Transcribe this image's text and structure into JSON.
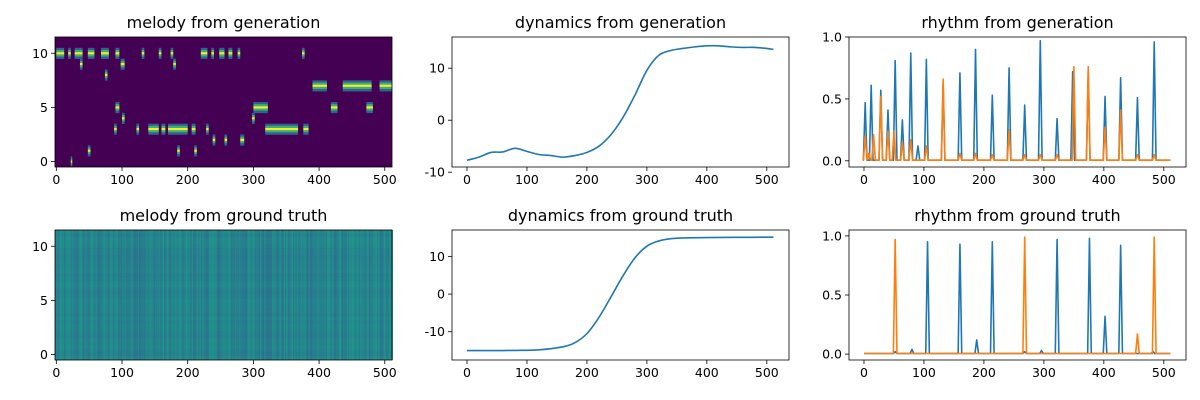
{
  "chart_data": [
    {
      "type": "heatmap",
      "title": "melody from generation",
      "colormap": "viridis",
      "xlim": [
        -2,
        511
      ],
      "ylim": [
        -0.5,
        11.5
      ],
      "xticks": [
        0,
        100,
        200,
        300,
        400,
        500
      ],
      "yticks": [
        0,
        5,
        10
      ],
      "rows": 12,
      "cols": 512,
      "active_segments": [
        {
          "row": 10,
          "start": 0,
          "end": 12
        },
        {
          "row": 10,
          "start": 18,
          "end": 22
        },
        {
          "row": 10,
          "start": 28,
          "end": 40
        },
        {
          "row": 10,
          "start": 48,
          "end": 58
        },
        {
          "row": 10,
          "start": 68,
          "end": 80
        },
        {
          "row": 10,
          "start": 90,
          "end": 96
        },
        {
          "row": 10,
          "start": 130,
          "end": 134
        },
        {
          "row": 10,
          "start": 156,
          "end": 160
        },
        {
          "row": 10,
          "start": 174,
          "end": 178
        },
        {
          "row": 10,
          "start": 220,
          "end": 230
        },
        {
          "row": 10,
          "start": 236,
          "end": 240
        },
        {
          "row": 10,
          "start": 248,
          "end": 256
        },
        {
          "row": 10,
          "start": 262,
          "end": 268
        },
        {
          "row": 10,
          "start": 276,
          "end": 280
        },
        {
          "row": 10,
          "start": 374,
          "end": 378
        },
        {
          "row": 9,
          "start": 36,
          "end": 40
        },
        {
          "row": 9,
          "start": 98,
          "end": 104
        },
        {
          "row": 9,
          "start": 178,
          "end": 182
        },
        {
          "row": 8,
          "start": 74,
          "end": 78
        },
        {
          "row": 7,
          "start": 390,
          "end": 412
        },
        {
          "row": 7,
          "start": 436,
          "end": 480
        },
        {
          "row": 7,
          "start": 492,
          "end": 511
        },
        {
          "row": 5,
          "start": 90,
          "end": 96
        },
        {
          "row": 5,
          "start": 300,
          "end": 322
        },
        {
          "row": 5,
          "start": 418,
          "end": 428
        },
        {
          "row": 5,
          "start": 472,
          "end": 482
        },
        {
          "row": 4,
          "start": 100,
          "end": 104
        },
        {
          "row": 4,
          "start": 298,
          "end": 302
        },
        {
          "row": 3,
          "start": 88,
          "end": 92
        },
        {
          "row": 3,
          "start": 122,
          "end": 126
        },
        {
          "row": 3,
          "start": 140,
          "end": 156
        },
        {
          "row": 3,
          "start": 160,
          "end": 166
        },
        {
          "row": 3,
          "start": 170,
          "end": 200
        },
        {
          "row": 3,
          "start": 206,
          "end": 212
        },
        {
          "row": 3,
          "start": 228,
          "end": 232
        },
        {
          "row": 3,
          "start": 318,
          "end": 368
        },
        {
          "row": 3,
          "start": 376,
          "end": 384
        },
        {
          "row": 2,
          "start": 238,
          "end": 242
        },
        {
          "row": 2,
          "start": 256,
          "end": 260
        },
        {
          "row": 2,
          "start": 280,
          "end": 286
        },
        {
          "row": 1,
          "start": 48,
          "end": 52
        },
        {
          "row": 1,
          "start": 184,
          "end": 188
        },
        {
          "row": 1,
          "start": 210,
          "end": 214
        },
        {
          "row": 0,
          "start": 22,
          "end": 24
        }
      ]
    },
    {
      "type": "line",
      "title": "dynamics from generation",
      "xlim": [
        -25,
        537
      ],
      "ylim": [
        -9,
        16
      ],
      "xticks": [
        0,
        100,
        200,
        300,
        400,
        500
      ],
      "yticks": [
        -10,
        0,
        10
      ],
      "series": [
        {
          "color": "#1f77b4",
          "x": [
            0,
            20,
            40,
            60,
            80,
            100,
            120,
            140,
            160,
            180,
            200,
            220,
            240,
            260,
            280,
            300,
            320,
            340,
            360,
            380,
            400,
            420,
            440,
            460,
            480,
            500,
            511
          ],
          "y": [
            -7.7,
            -7.1,
            -6.2,
            -6.1,
            -5.4,
            -6.0,
            -6.6,
            -6.8,
            -7.1,
            -6.8,
            -6.2,
            -5.0,
            -2.8,
            0.5,
            4.8,
            9.6,
            12.5,
            13.4,
            13.8,
            14.1,
            14.3,
            14.3,
            14.1,
            14.0,
            14.0,
            13.8,
            13.6
          ]
        }
      ]
    },
    {
      "type": "line",
      "title": "rhythm from generation",
      "xlim": [
        -25,
        537
      ],
      "ylim": [
        -0.05,
        1.0
      ],
      "xticks": [
        0,
        100,
        200,
        300,
        400,
        500
      ],
      "yticks": [
        0.0,
        0.5,
        1.0
      ],
      "yticklabels": [
        "0.0",
        "0.5",
        "1.0"
      ],
      "series": [
        {
          "color": "#1f77b4",
          "peaks": [
            [
              2,
              0.47
            ],
            [
              12,
              0.61
            ],
            [
              28,
              0.57
            ],
            [
              40,
              0.41
            ],
            [
              52,
              0.81
            ],
            [
              64,
              0.33
            ],
            [
              78,
              0.87
            ],
            [
              90,
              0.12
            ],
            [
              104,
              0.82
            ],
            [
              132,
              0.62
            ],
            [
              160,
              0.71
            ],
            [
              186,
              0.9
            ],
            [
              214,
              0.53
            ],
            [
              242,
              0.75
            ],
            [
              268,
              0.45
            ],
            [
              294,
              0.97
            ],
            [
              322,
              0.34
            ],
            [
              348,
              0.72
            ],
            [
              374,
              0.72
            ],
            [
              402,
              0.52
            ],
            [
              428,
              0.67
            ],
            [
              456,
              0.51
            ],
            [
              484,
              0.96
            ]
          ]
        },
        {
          "color": "#ff7f0e",
          "peaks": [
            [
              2,
              0.2
            ],
            [
              8,
              0.06
            ],
            [
              16,
              0.21
            ],
            [
              28,
              0.52
            ],
            [
              40,
              0.24
            ],
            [
              50,
              0.24
            ],
            [
              64,
              0.15
            ],
            [
              78,
              0.17
            ],
            [
              104,
              0.12
            ],
            [
              132,
              0.66
            ],
            [
              160,
              0.06
            ],
            [
              186,
              0.06
            ],
            [
              214,
              0.05
            ],
            [
              242,
              0.25
            ],
            [
              268,
              0.05
            ],
            [
              294,
              0.05
            ],
            [
              322,
              0.05
            ],
            [
              350,
              0.76
            ],
            [
              374,
              0.76
            ],
            [
              402,
              0.27
            ],
            [
              428,
              0.41
            ],
            [
              456,
              0.05
            ],
            [
              484,
              0.05
            ]
          ]
        }
      ]
    },
    {
      "type": "heatmap",
      "title": "melody from ground truth",
      "colormap": "viridis",
      "xlim": [
        -2,
        511
      ],
      "ylim": [
        -0.5,
        11.5
      ],
      "xticks": [
        0,
        100,
        200,
        300,
        400,
        500
      ],
      "yticks": [
        0,
        5,
        10
      ],
      "rows": 12,
      "cols": 512,
      "value_range": [
        0.35,
        0.55
      ]
    },
    {
      "type": "line",
      "title": "dynamics from ground truth",
      "xlim": [
        -25,
        537
      ],
      "ylim": [
        -17.5,
        17
      ],
      "xticks": [
        0,
        100,
        200,
        300,
        400,
        500
      ],
      "yticks": [
        -10,
        0,
        10
      ],
      "series": [
        {
          "color": "#1f77b4",
          "x": [
            0,
            40,
            80,
            120,
            160,
            180,
            200,
            220,
            240,
            260,
            280,
            300,
            320,
            340,
            360,
            400,
            450,
            511
          ],
          "y": [
            -15.0,
            -15.0,
            -14.95,
            -14.8,
            -14.0,
            -12.9,
            -10.5,
            -6.2,
            -0.8,
            4.8,
            9.6,
            12.7,
            14.1,
            14.7,
            14.9,
            15.0,
            15.05,
            15.1
          ]
        }
      ]
    },
    {
      "type": "line",
      "title": "rhythm from ground truth",
      "xlim": [
        -25,
        537
      ],
      "ylim": [
        -0.05,
        1.05
      ],
      "xticks": [
        0,
        100,
        200,
        300,
        400,
        500
      ],
      "yticks": [
        0.0,
        0.5,
        1.0
      ],
      "yticklabels": [
        "0.0",
        "0.5",
        "1.0"
      ],
      "series": [
        {
          "color": "#1f77b4",
          "peaks": [
            [
              52,
              0.02
            ],
            [
              80,
              0.04
            ],
            [
              106,
              0.95
            ],
            [
              160,
              0.93
            ],
            [
              188,
              0.12
            ],
            [
              214,
              0.95
            ],
            [
              268,
              0.02
            ],
            [
              296,
              0.03
            ],
            [
              322,
              0.97
            ],
            [
              376,
              0.98
            ],
            [
              402,
              0.32
            ],
            [
              428,
              0.92
            ],
            [
              482,
              0.02
            ]
          ]
        },
        {
          "color": "#ff7f0e",
          "peaks": [
            [
              52,
              0.97
            ],
            [
              268,
              0.99
            ],
            [
              456,
              0.17
            ],
            [
              484,
              0.99
            ]
          ]
        }
      ]
    }
  ]
}
